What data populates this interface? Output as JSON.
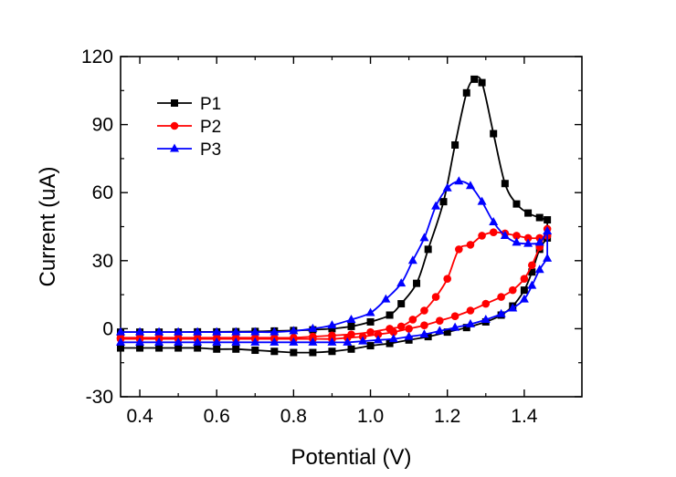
{
  "chart_data": {
    "type": "line",
    "title": "",
    "xlabel": "Potential (V)",
    "ylabel": "Current (uA)",
    "xlim": [
      0.35,
      1.55
    ],
    "ylim": [
      -30,
      120
    ],
    "x_ticks": [
      0.4,
      0.6,
      0.8,
      1.0,
      1.2,
      1.4
    ],
    "x_tick_labels": [
      "0.4",
      "0.6",
      "0.8",
      "1.0",
      "1.2",
      "1.4"
    ],
    "y_ticks": [
      -30,
      0,
      30,
      60,
      90,
      120
    ],
    "y_tick_labels": [
      "-30",
      "0",
      "30",
      "60",
      "90",
      "120"
    ],
    "grid": false,
    "legend_position": "top-left",
    "series": [
      {
        "name": "P1",
        "color": "#000000",
        "marker": "square",
        "forward": [
          [
            0.35,
            -1.5
          ],
          [
            0.4,
            -1.5
          ],
          [
            0.45,
            -1.5
          ],
          [
            0.5,
            -1.5
          ],
          [
            0.55,
            -1.4
          ],
          [
            0.6,
            -1.4
          ],
          [
            0.65,
            -1.3
          ],
          [
            0.7,
            -1.2
          ],
          [
            0.75,
            -1.0
          ],
          [
            0.8,
            -0.8
          ],
          [
            0.85,
            -0.5
          ],
          [
            0.9,
            0.0
          ],
          [
            0.95,
            1.0
          ],
          [
            1.0,
            3.0
          ],
          [
            1.05,
            6.0
          ],
          [
            1.08,
            11.0
          ],
          [
            1.12,
            20.0
          ],
          [
            1.15,
            35.0
          ],
          [
            1.19,
            56.0
          ],
          [
            1.22,
            81.0
          ],
          [
            1.25,
            104.0
          ],
          [
            1.27,
            110.0
          ],
          [
            1.29,
            108.5
          ],
          [
            1.32,
            86.0
          ],
          [
            1.35,
            64.0
          ],
          [
            1.38,
            55.0
          ],
          [
            1.41,
            51.0
          ],
          [
            1.44,
            49.0
          ],
          [
            1.46,
            48.0
          ]
        ],
        "reverse": [
          [
            1.46,
            40.0
          ],
          [
            1.44,
            35.0
          ],
          [
            1.42,
            25.0
          ],
          [
            1.4,
            17.0
          ],
          [
            1.37,
            10.0
          ],
          [
            1.34,
            6.0
          ],
          [
            1.3,
            3.0
          ],
          [
            1.25,
            0.5
          ],
          [
            1.2,
            -1.5
          ],
          [
            1.15,
            -3.5
          ],
          [
            1.1,
            -5.0
          ],
          [
            1.05,
            -6.5
          ],
          [
            1.0,
            -7.5
          ],
          [
            0.95,
            -9.0
          ],
          [
            0.9,
            -10.0
          ],
          [
            0.85,
            -10.5
          ],
          [
            0.8,
            -10.5
          ],
          [
            0.75,
            -10.0
          ],
          [
            0.7,
            -9.5
          ],
          [
            0.65,
            -9.0
          ],
          [
            0.6,
            -9.0
          ],
          [
            0.55,
            -8.5
          ],
          [
            0.5,
            -8.5
          ],
          [
            0.45,
            -8.5
          ],
          [
            0.4,
            -8.5
          ],
          [
            0.35,
            -8.5
          ]
        ]
      },
      {
        "name": "P2",
        "color": "#ff0000",
        "marker": "circle",
        "forward": [
          [
            0.35,
            -4.0
          ],
          [
            0.4,
            -4.0
          ],
          [
            0.45,
            -4.0
          ],
          [
            0.5,
            -4.0
          ],
          [
            0.55,
            -4.0
          ],
          [
            0.6,
            -4.0
          ],
          [
            0.65,
            -4.0
          ],
          [
            0.7,
            -4.0
          ],
          [
            0.75,
            -4.0
          ],
          [
            0.8,
            -4.0
          ],
          [
            0.85,
            -3.5
          ],
          [
            0.9,
            -3.0
          ],
          [
            0.95,
            -2.5
          ],
          [
            1.0,
            -1.5
          ],
          [
            1.05,
            0.0
          ],
          [
            1.08,
            1.0
          ],
          [
            1.11,
            4.0
          ],
          [
            1.14,
            8.0
          ],
          [
            1.17,
            14.0
          ],
          [
            1.2,
            22.0
          ],
          [
            1.23,
            35.0
          ],
          [
            1.26,
            37.0
          ],
          [
            1.29,
            41.0
          ],
          [
            1.32,
            42.5
          ],
          [
            1.35,
            42.0
          ],
          [
            1.38,
            41.0
          ],
          [
            1.41,
            40.0
          ],
          [
            1.44,
            40.0
          ],
          [
            1.46,
            41.0
          ]
        ],
        "reverse": [
          [
            1.46,
            44.0
          ],
          [
            1.44,
            36.0
          ],
          [
            1.42,
            28.0
          ],
          [
            1.4,
            22.0
          ],
          [
            1.37,
            17.0
          ],
          [
            1.34,
            14.0
          ],
          [
            1.3,
            11.0
          ],
          [
            1.26,
            8.0
          ],
          [
            1.22,
            5.5
          ],
          [
            1.18,
            3.5
          ],
          [
            1.14,
            1.5
          ],
          [
            1.1,
            0.0
          ],
          [
            1.06,
            -1.5
          ],
          [
            1.02,
            -2.5
          ],
          [
            0.98,
            -3.5
          ],
          [
            0.94,
            -4.0
          ],
          [
            0.9,
            -4.5
          ],
          [
            0.85,
            -4.5
          ],
          [
            0.8,
            -4.5
          ],
          [
            0.75,
            -4.5
          ],
          [
            0.7,
            -4.5
          ],
          [
            0.65,
            -4.5
          ],
          [
            0.6,
            -4.5
          ],
          [
            0.55,
            -4.5
          ],
          [
            0.5,
            -4.5
          ],
          [
            0.45,
            -4.5
          ],
          [
            0.4,
            -4.5
          ],
          [
            0.35,
            -4.5
          ]
        ]
      },
      {
        "name": "P3",
        "color": "#0000ff",
        "marker": "triangle",
        "forward": [
          [
            0.35,
            -1.5
          ],
          [
            0.4,
            -1.5
          ],
          [
            0.45,
            -1.5
          ],
          [
            0.5,
            -1.5
          ],
          [
            0.55,
            -1.5
          ],
          [
            0.6,
            -1.5
          ],
          [
            0.65,
            -1.5
          ],
          [
            0.7,
            -1.5
          ],
          [
            0.75,
            -1.5
          ],
          [
            0.8,
            -1.0
          ],
          [
            0.85,
            0.0
          ],
          [
            0.9,
            1.5
          ],
          [
            0.95,
            4.0
          ],
          [
            1.0,
            7.0
          ],
          [
            1.04,
            13.0
          ],
          [
            1.08,
            20.0
          ],
          [
            1.11,
            30.0
          ],
          [
            1.14,
            40.0
          ],
          [
            1.17,
            54.0
          ],
          [
            1.2,
            62.0
          ],
          [
            1.23,
            65.0
          ],
          [
            1.26,
            63.0
          ],
          [
            1.29,
            56.0
          ],
          [
            1.32,
            47.0
          ],
          [
            1.35,
            41.0
          ],
          [
            1.38,
            38.0
          ],
          [
            1.41,
            37.5
          ],
          [
            1.44,
            38.0
          ],
          [
            1.46,
            43.0
          ]
        ],
        "reverse": [
          [
            1.46,
            31.0
          ],
          [
            1.44,
            26.0
          ],
          [
            1.42,
            19.0
          ],
          [
            1.4,
            13.0
          ],
          [
            1.37,
            9.0
          ],
          [
            1.34,
            6.5
          ],
          [
            1.3,
            4.0
          ],
          [
            1.26,
            2.0
          ],
          [
            1.22,
            0.5
          ],
          [
            1.18,
            -1.0
          ],
          [
            1.14,
            -2.5
          ],
          [
            1.1,
            -3.5
          ],
          [
            1.06,
            -4.5
          ],
          [
            1.02,
            -5.0
          ],
          [
            0.98,
            -5.5
          ],
          [
            0.94,
            -6.0
          ],
          [
            0.9,
            -6.0
          ],
          [
            0.85,
            -6.0
          ],
          [
            0.8,
            -6.0
          ],
          [
            0.75,
            -6.0
          ],
          [
            0.7,
            -6.0
          ],
          [
            0.65,
            -6.0
          ],
          [
            0.6,
            -6.0
          ],
          [
            0.55,
            -6.0
          ],
          [
            0.5,
            -6.0
          ],
          [
            0.45,
            -6.0
          ],
          [
            0.4,
            -6.0
          ],
          [
            0.35,
            -6.0
          ]
        ]
      }
    ]
  }
}
